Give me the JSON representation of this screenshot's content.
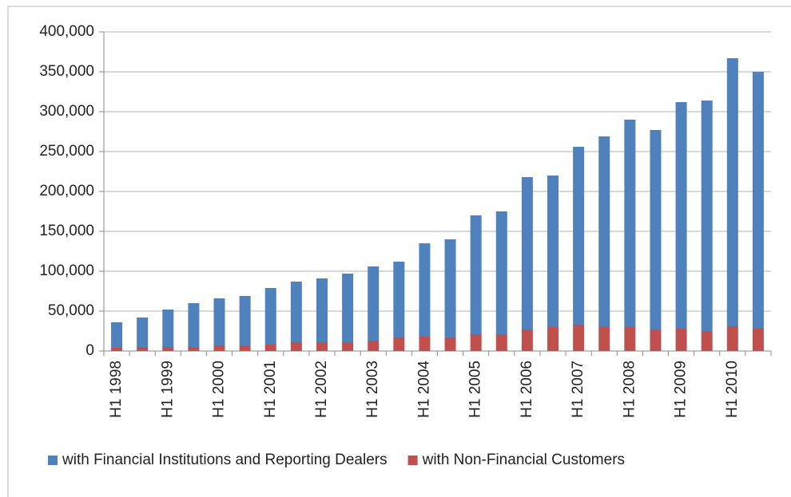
{
  "chart_data": {
    "type": "stacked-bar",
    "categories": [
      "H1 1998",
      null,
      "H1 1999",
      null,
      "H1 2000",
      null,
      "H1 2001",
      null,
      "H1 2002",
      null,
      "H1 2003",
      null,
      "H1 2004",
      null,
      "H1 2005",
      null,
      "H1 2006",
      null,
      "H1 2007",
      null,
      "H1 2008",
      null,
      "H1 2009",
      null,
      "H1 2010",
      null
    ],
    "series": [
      {
        "name": "with Financial Institutions and Reporting Dealers",
        "color": "#4f81bd",
        "values": [
          32000,
          37000,
          47000,
          55000,
          59000,
          62000,
          71000,
          76000,
          80000,
          86000,
          93000,
          95000,
          117000,
          123000,
          149000,
          154000,
          191000,
          190000,
          223000,
          239000,
          260000,
          250000,
          284000,
          289000,
          336000,
          322000
        ]
      },
      {
        "name": "with Non-Financial Customers",
        "color": "#c0504d",
        "values": [
          4000,
          5000,
          5000,
          5000,
          7000,
          7000,
          8000,
          11000,
          11000,
          11000,
          13000,
          17000,
          18000,
          17000,
          21000,
          21000,
          27000,
          30000,
          33000,
          30000,
          30000,
          27000,
          28000,
          25000,
          31000,
          28000
        ]
      }
    ],
    "ylim": [
      0,
      400000
    ],
    "yticks": [
      0,
      {
        "value": 50000,
        "label": "50,000"
      },
      {
        "value": 100000,
        "label": "100,000"
      },
      {
        "value": 150000,
        "label": "150,000"
      },
      {
        "value": 200000,
        "label": "200,000"
      },
      {
        "value": 250000,
        "label": "250,000"
      },
      {
        "value": 300000,
        "label": "300,000"
      },
      {
        "value": 350000,
        "label": "350,000"
      },
      {
        "value": 400000,
        "label": "400,000"
      }
    ],
    "grid": true,
    "legend": "bottom"
  }
}
